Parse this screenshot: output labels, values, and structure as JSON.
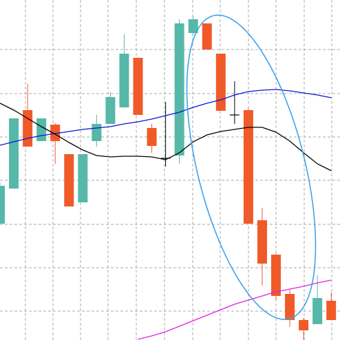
{
  "chart_data": {
    "type": "candlestick",
    "categories": [
      null,
      null,
      null,
      null,
      null,
      null,
      null,
      null,
      null,
      null,
      null,
      null,
      null,
      null,
      null,
      null,
      null,
      null,
      null,
      null,
      null,
      null,
      null,
      null,
      null
    ],
    "open": [
      169,
      220,
      334,
      289,
      313,
      270,
      200,
      289,
      314,
      338,
      410,
      308,
      264,
      268,
      446,
      460,
      416,
      327,
      334,
      174,
      124,
      67,
      29,
      23,
      57
    ],
    "high": [
      229,
      322,
      372,
      322,
      315,
      270,
      270,
      327,
      360,
      444,
      410,
      314,
      346,
      466,
      470,
      460,
      416,
      376,
      336,
      192,
      126,
      74,
      32,
      94,
      69
    ],
    "low": [
      169,
      220,
      281,
      289,
      256,
      194,
      200,
      281,
      314,
      338,
      327,
      272,
      252,
      256,
      444,
      422,
      333,
      314,
      169,
      79,
      58,
      19,
      0,
      23,
      29
    ],
    "close": [
      224,
      322,
      281,
      322,
      289,
      194,
      270,
      314,
      353,
      416,
      327,
      282,
      264,
      460,
      466,
      422,
      333,
      327,
      169,
      111,
      64,
      29,
      14,
      61,
      29
    ],
    "up_color": "#56b8a9",
    "down_color": "#f05a28",
    "flat_color": "#000000",
    "lines": [
      {
        "color": "#0a14d6",
        "values": [
          283,
          288,
          293,
          297,
          300,
          303,
          306,
          308,
          310,
          314,
          317,
          321,
          326,
          331,
          338,
          344,
          349,
          356,
          361,
          363,
          364,
          362,
          359,
          356,
          352
        ]
      },
      {
        "color": "#000000",
        "values": [
          344,
          334,
          322,
          310,
          299,
          287,
          276,
          268,
          266,
          267,
          267,
          266,
          262,
          272,
          288,
          298,
          303,
          306,
          309,
          309,
          302,
          289,
          272,
          256,
          246
        ]
      },
      {
        "color": "#e020e0",
        "values": [
          null,
          null,
          null,
          null,
          null,
          null,
          null,
          null,
          null,
          null,
          1,
          6,
          12,
          20,
          28,
          36,
          44,
          52,
          58,
          64,
          70,
          74,
          78,
          83,
          87
        ]
      }
    ],
    "ylim": [
      0,
      494
    ],
    "yticks": [
      42,
      105,
      168,
      232,
      295,
      358,
      422
    ],
    "grid": true
  }
}
